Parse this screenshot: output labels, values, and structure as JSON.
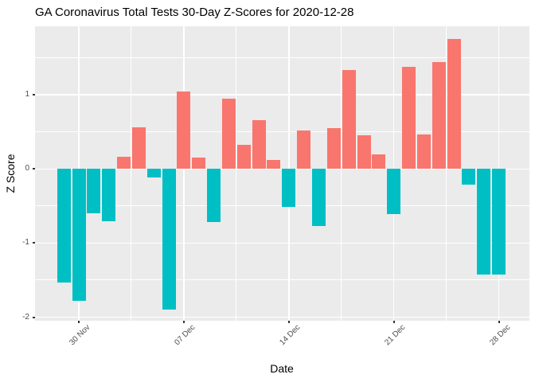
{
  "title": "GA Coronavirus Total Tests 30-Day Z-Scores for 2020-12-28",
  "chart_data": {
    "type": "bar",
    "title": "GA Coronavirus Total Tests 30-Day Z-Scores for 2020-12-28",
    "xlabel": "Date",
    "ylabel": "Z Score",
    "legend_position": "none",
    "grid": "on",
    "panel_bg": "#EBEBEB",
    "grid_color": "#FFFFFF",
    "axis_text_color": "#4D4D4D",
    "tick_mark_color": "#333333",
    "positive_color": "#F8766D",
    "negative_color": "#00BFC4",
    "ylim": [
      -2.04,
      1.93
    ],
    "y_major_ticks": [
      1,
      0,
      -1,
      -2
    ],
    "y_minor_gridlines": [
      1.5,
      0.5,
      -0.5,
      -1.5
    ],
    "x_ticks": [
      {
        "date": "2020-11-30",
        "label": "30 Nov"
      },
      {
        "date": "2020-12-07",
        "label": "07 Dec"
      },
      {
        "date": "2020-12-14",
        "label": "14 Dec"
      },
      {
        "date": "2020-12-21",
        "label": "21 Dec"
      },
      {
        "date": "2020-12-28",
        "label": "28 Dec"
      }
    ],
    "dates": [
      "2020-11-29",
      "2020-11-30",
      "2020-12-01",
      "2020-12-02",
      "2020-12-03",
      "2020-12-04",
      "2020-12-05",
      "2020-12-06",
      "2020-12-07",
      "2020-12-08",
      "2020-12-09",
      "2020-12-10",
      "2020-12-11",
      "2020-12-12",
      "2020-12-13",
      "2020-12-14",
      "2020-12-15",
      "2020-12-16",
      "2020-12-17",
      "2020-12-18",
      "2020-12-19",
      "2020-12-20",
      "2020-12-21",
      "2020-12-22",
      "2020-12-23",
      "2020-12-24",
      "2020-12-25",
      "2020-12-26",
      "2020-12-27",
      "2020-12-28"
    ],
    "values": [
      -1.53,
      -1.78,
      -0.6,
      -0.71,
      0.16,
      0.56,
      -0.11,
      -1.9,
      1.05,
      0.15,
      -0.72,
      0.95,
      0.32,
      0.66,
      0.12,
      -0.51,
      0.52,
      -0.77,
      0.55,
      1.33,
      0.45,
      0.2,
      -0.61,
      1.38,
      0.47,
      1.44,
      1.75,
      -0.21,
      -1.43,
      -1.43
    ]
  }
}
